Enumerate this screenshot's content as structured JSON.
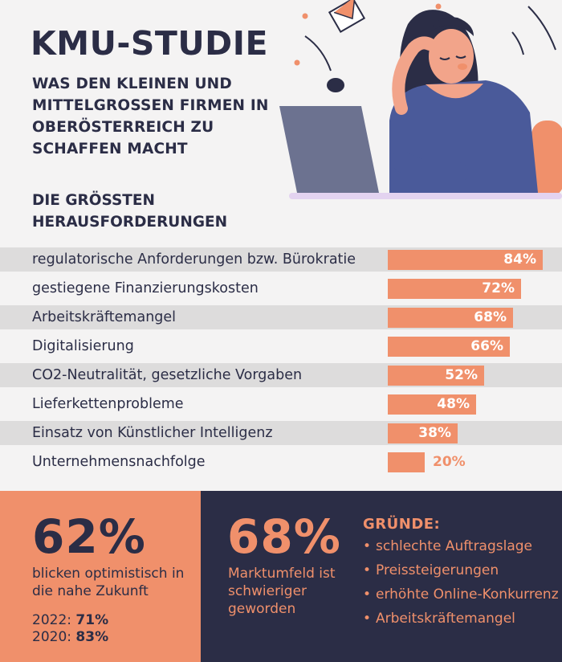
{
  "header": {
    "title": "KMU-STUDIE",
    "subtitle": "WAS DEN KLEINEN UND MITTELGROSSEN FIRMEN IN OBERÖSTERREICH ZU SCHAFFEN MACHT"
  },
  "section_heading": "DIE GRÖSSTEN HERAUSFORDERUNGEN",
  "colors": {
    "navy": "#2b2d46",
    "accent": "#f0906b",
    "band": "#dddcdc",
    "background": "#f4f3f3"
  },
  "chart_data": {
    "type": "bar",
    "orientation": "horizontal",
    "title": "DIE GRÖSSTEN HERAUSFORDERUNGEN",
    "categories": [
      "regulatorische Anforderungen bzw. Bürokratie",
      "gestiegene Finanzierungskosten",
      "Arbeitskräftemangel",
      "Digitalisierung",
      "CO2-Neutralität, gesetzliche Vorgaben",
      "Lieferkettenprobleme",
      "Einsatz von Künstlicher Intelligenz",
      "Unternehmensnachfolge"
    ],
    "values": [
      84,
      72,
      68,
      66,
      52,
      48,
      38,
      20
    ],
    "value_labels": [
      "84%",
      "72%",
      "68%",
      "66%",
      "52%",
      "48%",
      "38%",
      "20%"
    ],
    "unit": "%",
    "xlim": [
      0,
      100
    ],
    "grid": false,
    "legend": "none"
  },
  "panel_left": {
    "big_value": "62%",
    "caption": "blicken optimistisch in die nahe Zukunft",
    "history": [
      {
        "year": "2022:",
        "value": "71%"
      },
      {
        "year": "2020:",
        "value": "83%"
      }
    ]
  },
  "panel_right": {
    "big_value": "68%",
    "caption": "Marktumfeld ist schwieriger geworden",
    "reasons_title": "GRÜNDE:",
    "bullet": "•",
    "reasons": [
      "schlechte Auftragslage",
      "Preissteigerungen",
      "erhöhte Online-Konkurrenz",
      "Arbeitskräftemangel"
    ]
  },
  "icons": [
    "stressed-woman-illustration",
    "laptop-icon",
    "falling-envelope-icon"
  ]
}
